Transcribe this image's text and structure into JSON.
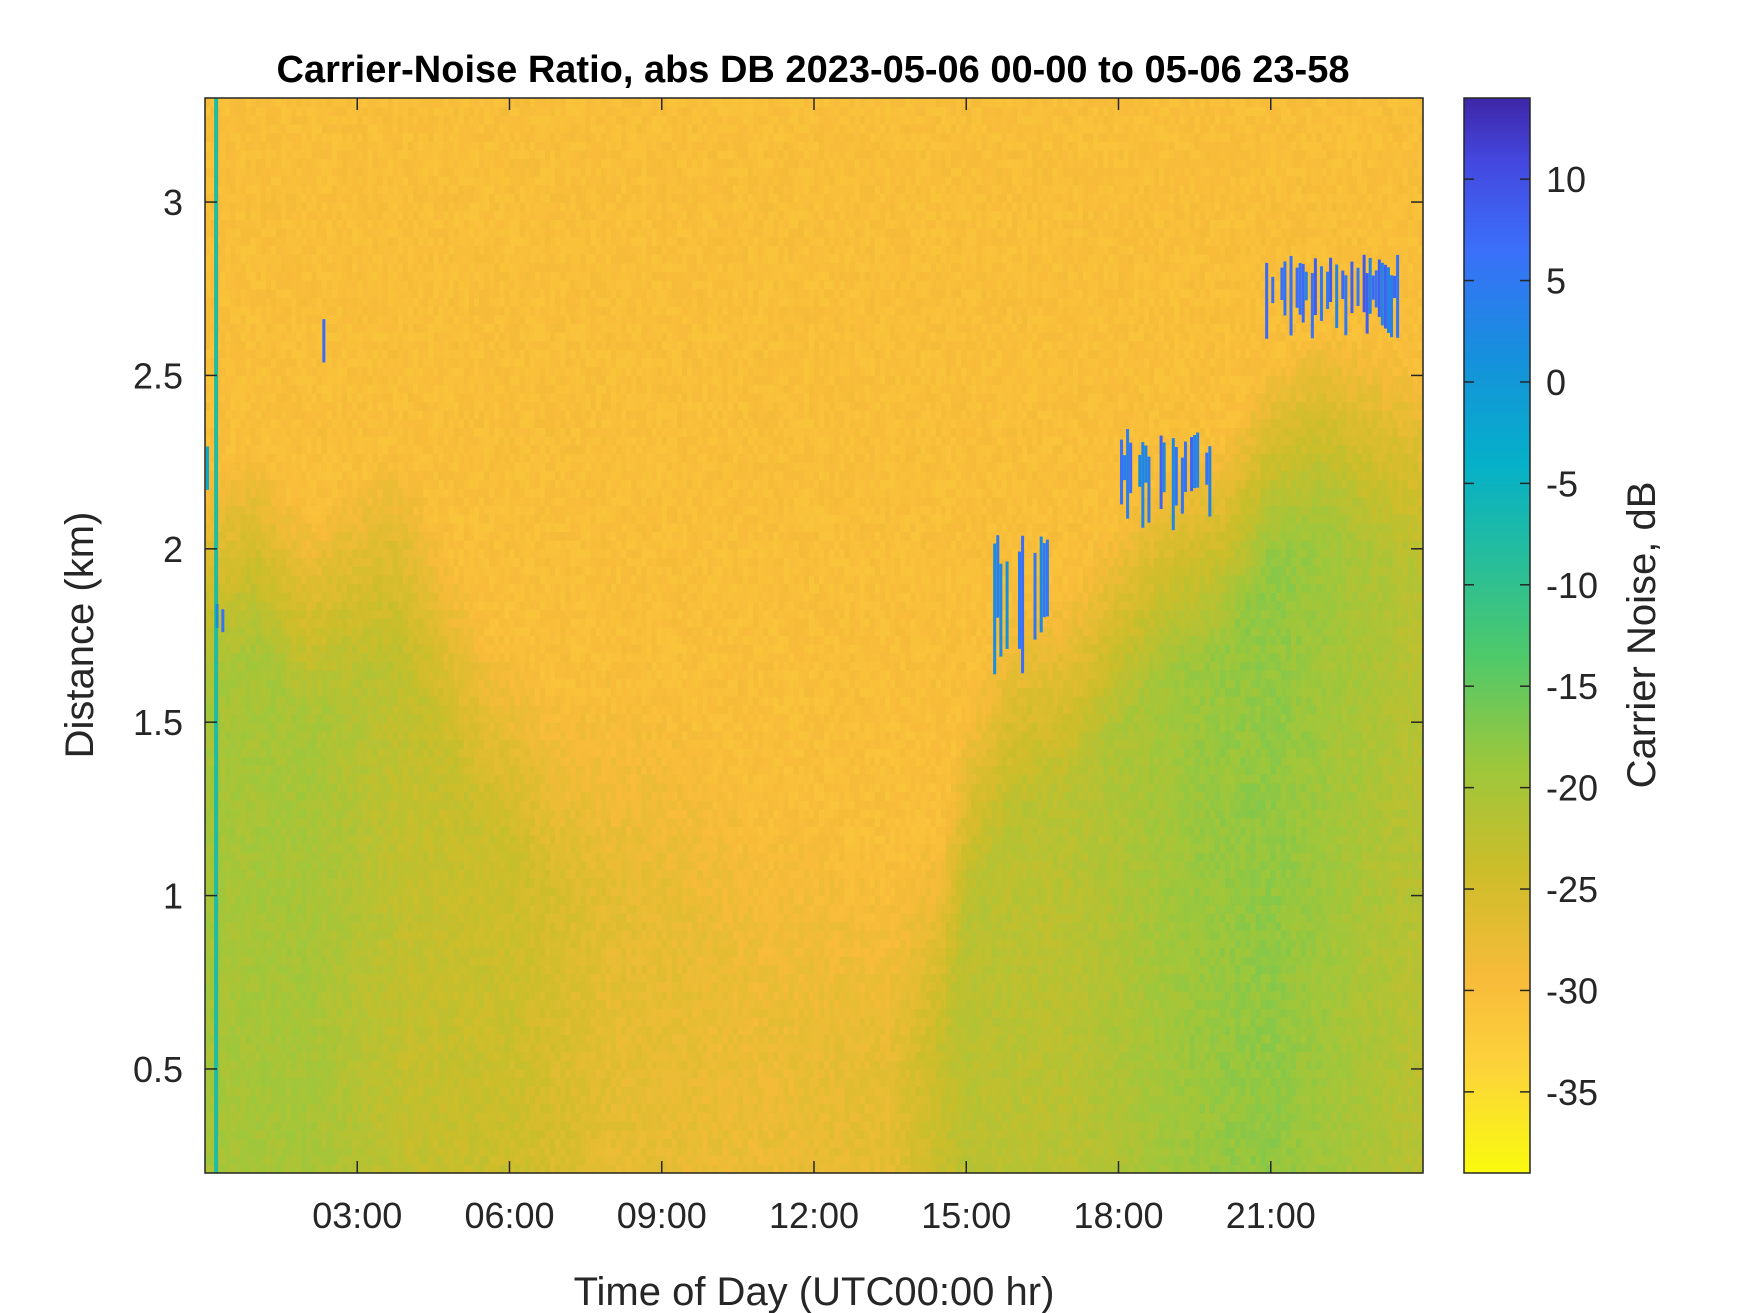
{
  "chart_data": {
    "type": "heatmap",
    "title": "Carrier-Noise Ratio, abs DB 2023-05-06 00-00 to 05-06 23-58",
    "xlabel": "Time of Day (UTC00:00 hr)",
    "ylabel": "Distance (km)",
    "colorbar_label": "Carrier Noise, dB",
    "xlim_hours": [
      0,
      24
    ],
    "ylim_km": [
      0.2,
      3.3
    ],
    "clim_db": [
      -39,
      14
    ],
    "x_ticks": [
      {
        "value": 3,
        "label": "03:00"
      },
      {
        "value": 6,
        "label": "06:00"
      },
      {
        "value": 9,
        "label": "09:00"
      },
      {
        "value": 12,
        "label": "12:00"
      },
      {
        "value": 15,
        "label": "15:00"
      },
      {
        "value": 18,
        "label": "18:00"
      },
      {
        "value": 21,
        "label": "21:00"
      }
    ],
    "y_ticks": [
      {
        "value": 0.5,
        "label": "0.5"
      },
      {
        "value": 1,
        "label": "1"
      },
      {
        "value": 1.5,
        "label": "1.5"
      },
      {
        "value": 2,
        "label": "2"
      },
      {
        "value": 2.5,
        "label": "2.5"
      },
      {
        "value": 3,
        "label": "3"
      }
    ],
    "colorbar_ticks": [
      {
        "value": 10,
        "label": "10"
      },
      {
        "value": 5,
        "label": "5"
      },
      {
        "value": 0,
        "label": "0"
      },
      {
        "value": -5,
        "label": "-5"
      },
      {
        "value": -10,
        "label": "-10"
      },
      {
        "value": -15,
        "label": "-15"
      },
      {
        "value": -20,
        "label": "-20"
      },
      {
        "value": -25,
        "label": "-25"
      },
      {
        "value": -30,
        "label": "-30"
      },
      {
        "value": -35,
        "label": "-35"
      }
    ],
    "colormap": "parula",
    "background_db": -30,
    "boundary_layer_top_km": [
      {
        "hour": 0.0,
        "km": 2.2
      },
      {
        "hour": 1.0,
        "km": 2.3
      },
      {
        "hour": 2.0,
        "km": 2.1
      },
      {
        "hour": 3.8,
        "km": 2.3
      },
      {
        "hour": 5.5,
        "km": 1.8
      },
      {
        "hour": 7.0,
        "km": 1.6
      },
      {
        "hour": 9.0,
        "km": 1.6
      },
      {
        "hour": 11.0,
        "km": 1.3
      },
      {
        "hour": 13.5,
        "km": 1.1
      },
      {
        "hour": 14.5,
        "km": 1.2
      },
      {
        "hour": 15.0,
        "km": 1.55
      },
      {
        "hour": 16.0,
        "km": 1.85
      },
      {
        "hour": 17.0,
        "km": 1.9
      },
      {
        "hour": 18.0,
        "km": 2.1
      },
      {
        "hour": 19.0,
        "km": 2.25
      },
      {
        "hour": 20.0,
        "km": 2.3
      },
      {
        "hour": 21.0,
        "km": 2.55
      },
      {
        "hour": 22.0,
        "km": 2.65
      },
      {
        "hour": 24.0,
        "km": 2.55
      }
    ],
    "layer_strength_db": [
      {
        "hour": 0.0,
        "db": -20
      },
      {
        "hour": 2.0,
        "db": -20
      },
      {
        "hour": 4.0,
        "db": -23
      },
      {
        "hour": 6.0,
        "db": -24
      },
      {
        "hour": 8.0,
        "db": -27
      },
      {
        "hour": 11.0,
        "db": -28
      },
      {
        "hour": 13.5,
        "db": -27
      },
      {
        "hour": 15.0,
        "db": -22
      },
      {
        "hour": 17.0,
        "db": -22
      },
      {
        "hour": 19.5,
        "db": -19
      },
      {
        "hour": 21.0,
        "db": -18
      },
      {
        "hour": 22.5,
        "db": -20
      },
      {
        "hour": 24.0,
        "db": -22
      }
    ],
    "high_returns": [
      {
        "hour_start": 2.2,
        "hour_end": 2.35,
        "km_low": 2.52,
        "km_high": 2.7,
        "db": 8
      },
      {
        "hour_start": 0.0,
        "hour_end": 0.08,
        "km_low": 2.15,
        "km_high": 2.35,
        "db": 0
      },
      {
        "hour_start": 0.18,
        "hour_end": 0.35,
        "km_low": 1.7,
        "km_high": 1.85,
        "db": 4
      },
      {
        "hour_start": 15.5,
        "hour_end": 16.6,
        "km_low": 1.6,
        "km_high": 2.05,
        "db": 4
      },
      {
        "hour_start": 18.0,
        "hour_end": 19.8,
        "km_low": 2.05,
        "km_high": 2.35,
        "db": 5
      },
      {
        "hour_start": 20.8,
        "hour_end": 23.5,
        "km_low": 2.6,
        "km_high": 2.85,
        "db": 6
      }
    ]
  }
}
